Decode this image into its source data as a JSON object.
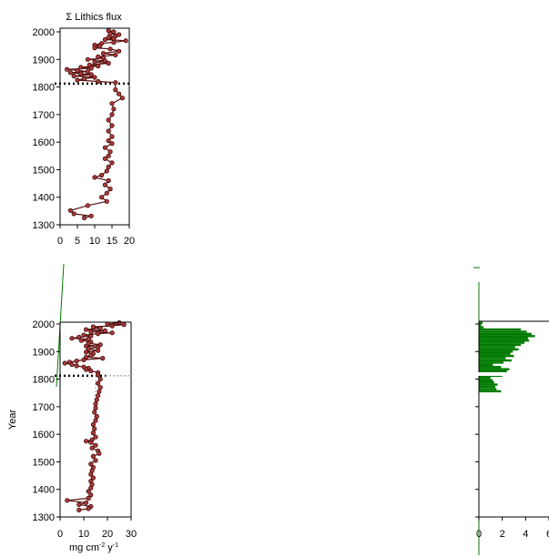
{
  "figure": {
    "y_axis_label": "Year",
    "event_year": 1812
  },
  "chart_data": [
    {
      "id": "lithics",
      "type": "line",
      "title": "Σ Lithics flux",
      "xlabel": "",
      "ylabel": "",
      "xlim": [
        0,
        20
      ],
      "ylim": [
        1300,
        2010
      ],
      "x_ticks": [
        "0",
        "5",
        "10",
        "15",
        "20"
      ],
      "y_ticks": [
        "1300",
        "1400",
        "1500",
        "1600",
        "1700",
        "1800",
        "1900",
        "2000"
      ],
      "marker": "circle",
      "color": "#a52a2a",
      "grid": false,
      "legend": "none",
      "points": [
        [
          14,
          2005
        ],
        [
          15.5,
          2000
        ],
        [
          14.5,
          1993
        ],
        [
          17,
          1990
        ],
        [
          16,
          1985
        ],
        [
          14,
          1980
        ],
        [
          15.5,
          1976
        ],
        [
          13,
          1972
        ],
        [
          19,
          1968
        ],
        [
          15.5,
          1962
        ],
        [
          12,
          1958
        ],
        [
          10,
          1952
        ],
        [
          11.5,
          1948
        ],
        [
          10,
          1942
        ],
        [
          14.5,
          1938
        ],
        [
          17,
          1930
        ],
        [
          12.5,
          1922
        ],
        [
          16,
          1916
        ],
        [
          11,
          1910
        ],
        [
          12.5,
          1905
        ],
        [
          8,
          1900
        ],
        [
          13,
          1895
        ],
        [
          10,
          1890
        ],
        [
          14,
          1886
        ],
        [
          8.5,
          1880
        ],
        [
          11,
          1876
        ],
        [
          6,
          1872
        ],
        [
          9,
          1868
        ],
        [
          2,
          1864
        ],
        [
          5,
          1860
        ],
        [
          8,
          1856
        ],
        [
          3,
          1852
        ],
        [
          6,
          1848
        ],
        [
          9,
          1845
        ],
        [
          4,
          1840
        ],
        [
          10,
          1835
        ],
        [
          7,
          1830
        ],
        [
          5,
          1825
        ],
        [
          11,
          1820
        ],
        [
          16,
          1816
        ],
        [
          16,
          1790
        ],
        [
          17,
          1775
        ],
        [
          18,
          1760
        ],
        [
          15,
          1740
        ],
        [
          15.5,
          1720
        ],
        [
          15,
          1700
        ],
        [
          14,
          1680
        ],
        [
          15,
          1660
        ],
        [
          14,
          1640
        ],
        [
          15,
          1620
        ],
        [
          14,
          1605
        ],
        [
          15,
          1595
        ],
        [
          13,
          1580
        ],
        [
          14.5,
          1565
        ],
        [
          14,
          1550
        ],
        [
          13,
          1540
        ],
        [
          15,
          1525
        ],
        [
          14,
          1510
        ],
        [
          13.5,
          1495
        ],
        [
          12,
          1480
        ],
        [
          10,
          1472
        ],
        [
          14,
          1460
        ],
        [
          13,
          1445
        ],
        [
          14.5,
          1430
        ],
        [
          13.5,
          1415
        ],
        [
          12,
          1400
        ],
        [
          13.5,
          1385
        ],
        [
          8,
          1370
        ],
        [
          3,
          1352
        ],
        [
          4,
          1340
        ],
        [
          9,
          1332
        ],
        [
          7,
          1325
        ]
      ]
    },
    {
      "id": "flux",
      "type": "line",
      "title": "",
      "xlabel": "mg cm⁻² y⁻¹",
      "ylabel": "Year",
      "xlim": [
        0,
        30
      ],
      "ylim": [
        1300,
        2010
      ],
      "x_ticks": [
        "0",
        "10",
        "20",
        "30"
      ],
      "y_ticks": [
        "1300",
        "1400",
        "1500",
        "1600",
        "1700",
        "1800",
        "1900",
        "2000"
      ],
      "marker": "circle",
      "color": "#a52a2a",
      "grid": false,
      "legend": "none",
      "points": [
        [
          25,
          2005
        ],
        [
          20,
          2000
        ],
        [
          27,
          1998
        ],
        [
          22,
          1993
        ],
        [
          14,
          1990
        ],
        [
          17,
          1985
        ],
        [
          11,
          1980
        ],
        [
          19,
          1976
        ],
        [
          13,
          1972
        ],
        [
          22,
          1968
        ],
        [
          16,
          1965
        ],
        [
          10,
          1960
        ],
        [
          13,
          1956
        ],
        [
          8,
          1952
        ],
        [
          5,
          1948
        ],
        [
          12,
          1945
        ],
        [
          9,
          1940
        ],
        [
          13,
          1935
        ],
        [
          12,
          1930
        ],
        [
          17,
          1925
        ],
        [
          11,
          1920
        ],
        [
          16,
          1916
        ],
        [
          12,
          1910
        ],
        [
          16,
          1904
        ],
        [
          11,
          1898
        ],
        [
          14,
          1892
        ],
        [
          13,
          1886
        ],
        [
          11,
          1880
        ],
        [
          18,
          1876
        ],
        [
          10,
          1870
        ],
        [
          7,
          1866
        ],
        [
          4,
          1862
        ],
        [
          2,
          1858
        ],
        [
          5,
          1853
        ],
        [
          7,
          1848
        ],
        [
          10,
          1844
        ],
        [
          12,
          1840
        ],
        [
          11,
          1835
        ],
        [
          13,
          1830
        ],
        [
          16,
          1824
        ],
        [
          16,
          1815
        ],
        [
          17,
          1800
        ],
        [
          16,
          1785
        ],
        [
          17,
          1770
        ],
        [
          16.5,
          1755
        ],
        [
          16,
          1740
        ],
        [
          15.5,
          1725
        ],
        [
          15,
          1710
        ],
        [
          15,
          1695
        ],
        [
          14.5,
          1680
        ],
        [
          15.5,
          1665
        ],
        [
          15,
          1650
        ],
        [
          14,
          1635
        ],
        [
          14.5,
          1620
        ],
        [
          14,
          1605
        ],
        [
          15,
          1590
        ],
        [
          13.5,
          1580
        ],
        [
          11,
          1575
        ],
        [
          13,
          1570
        ],
        [
          15,
          1560
        ],
        [
          13.5,
          1550
        ],
        [
          16,
          1540
        ],
        [
          16.5,
          1530
        ],
        [
          14,
          1520
        ],
        [
          15,
          1505
        ],
        [
          13,
          1492
        ],
        [
          14,
          1480
        ],
        [
          13.5,
          1468
        ],
        [
          13,
          1455
        ],
        [
          14,
          1442
        ],
        [
          13,
          1430
        ],
        [
          13.5,
          1418
        ],
        [
          13,
          1405
        ],
        [
          12,
          1393
        ],
        [
          13,
          1380
        ],
        [
          12,
          1368
        ],
        [
          3,
          1360
        ],
        [
          11,
          1352
        ],
        [
          8,
          1345
        ],
        [
          13,
          1338
        ],
        [
          12,
          1330
        ],
        [
          8,
          1325
        ]
      ]
    },
    {
      "id": "bars",
      "type": "bar",
      "title": "",
      "xlabel": "",
      "ylabel": "",
      "xlim": [
        0,
        6
      ],
      "ylim": [
        1300,
        2010
      ],
      "x_ticks": [
        "0",
        "2",
        "4",
        "6"
      ],
      "color": "#007a00",
      "grid": false,
      "legend": "none",
      "year_bottom": 1752,
      "year_step": 8,
      "values": [
        1.9,
        1.5,
        1.4,
        1.6,
        1.3,
        1.2,
        1.0,
        2.0,
        2.6,
        2.4,
        2.6,
        1.9,
        1.2,
        2.1,
        2.8,
        2.3,
        3.0,
        2.7,
        2.9,
        3.4,
        3.1,
        3.6,
        3.9,
        4.3,
        4.2,
        4.8,
        4.5,
        4.1,
        3.6,
        0.4,
        0.2,
        0.3
      ]
    }
  ]
}
